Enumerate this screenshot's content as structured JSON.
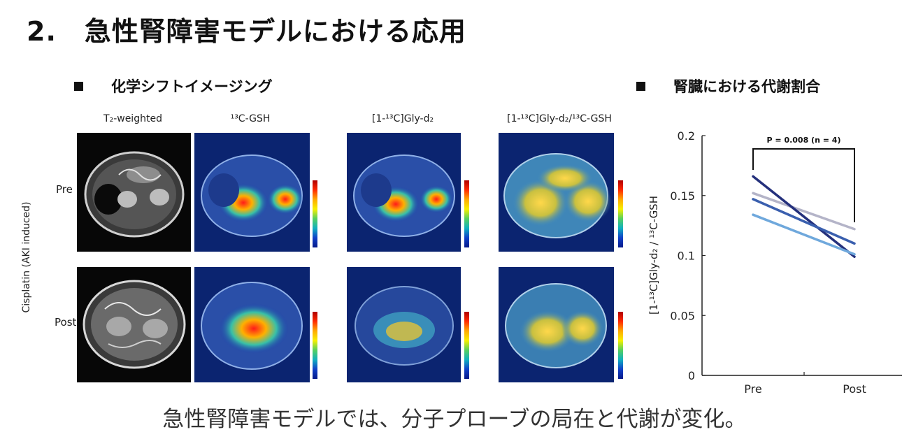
{
  "slide": {
    "number": "2.",
    "title": "急性腎障害モデルにおける応用"
  },
  "sections": {
    "left_title": "化学シフトイメージング",
    "right_title": "腎臓における代謝割合"
  },
  "imaging": {
    "column_headers": [
      "T₂-weighted",
      "¹³C-GSH",
      "[1-¹³C]Gly-d₂",
      "[1-¹³C]Gly-d₂/¹³C-GSH"
    ],
    "row_labels": [
      "Pre",
      "Post"
    ],
    "group_label": "Cisplatin (AKI induced)"
  },
  "caption": "急性腎障害モデルでは、分子プローブの局在と代謝が変化。",
  "chart_data": {
    "type": "line",
    "categories": [
      "Pre",
      "Post"
    ],
    "ylabel": "[1-¹³C]Gly-d₂ / ¹³C-GSH",
    "ylim": [
      0,
      0.2
    ],
    "yticks": [
      0,
      0.05,
      0.1,
      0.15,
      0.2
    ],
    "ytick_labels": [
      "0",
      "0.05",
      "0.1",
      "0.15",
      "0.2"
    ],
    "annotation": "P = 0.008 (n = 4)",
    "series": [
      {
        "values": [
          0.152,
          0.122
        ],
        "color": "#b4b4c8"
      },
      {
        "values": [
          0.166,
          0.099
        ],
        "color": "#24307c"
      },
      {
        "values": [
          0.147,
          0.11
        ],
        "color": "#3a5fae"
      },
      {
        "values": [
          0.134,
          0.101
        ],
        "color": "#6fa8dc"
      }
    ]
  }
}
